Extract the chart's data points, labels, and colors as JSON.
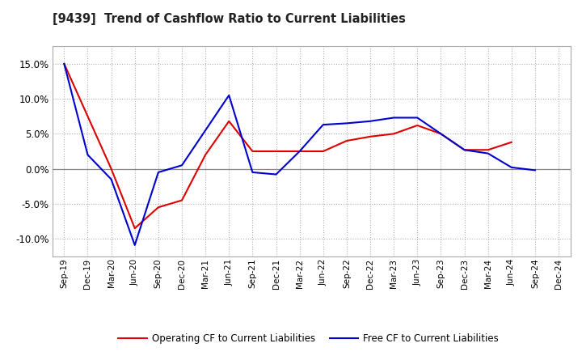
{
  "title": "[9439]  Trend of Cashflow Ratio to Current Liabilities",
  "x_labels": [
    "Sep-19",
    "Dec-19",
    "Mar-20",
    "Jun-20",
    "Sep-20",
    "Dec-20",
    "Mar-21",
    "Jun-21",
    "Sep-21",
    "Dec-21",
    "Mar-22",
    "Jun-22",
    "Sep-22",
    "Dec-22",
    "Mar-23",
    "Jun-23",
    "Sep-23",
    "Dec-23",
    "Mar-24",
    "Jun-24",
    "Sep-24",
    "Dec-24"
  ],
  "operating_cf": [
    0.15,
    0.075,
    0.0,
    -0.085,
    -0.055,
    -0.045,
    0.02,
    0.068,
    0.025,
    0.025,
    0.025,
    0.025,
    0.04,
    0.046,
    0.05,
    0.062,
    0.05,
    0.027,
    0.027,
    0.038,
    null,
    null
  ],
  "free_cf": [
    0.15,
    0.02,
    -0.015,
    -0.109,
    -0.005,
    0.005,
    0.055,
    0.105,
    -0.005,
    -0.008,
    0.025,
    0.063,
    0.065,
    0.068,
    0.073,
    0.073,
    0.05,
    0.027,
    0.022,
    0.002,
    -0.002,
    null
  ],
  "operating_color": "#dd0000",
  "free_color": "#0000cc",
  "background_color": "#ffffff",
  "grid_color": "#b0b0b0",
  "ylim": [
    -0.125,
    0.175
  ],
  "yticks": [
    -0.1,
    -0.05,
    0.0,
    0.05,
    0.1,
    0.15
  ],
  "legend_labels": [
    "Operating CF to Current Liabilities",
    "Free CF to Current Liabilities"
  ]
}
